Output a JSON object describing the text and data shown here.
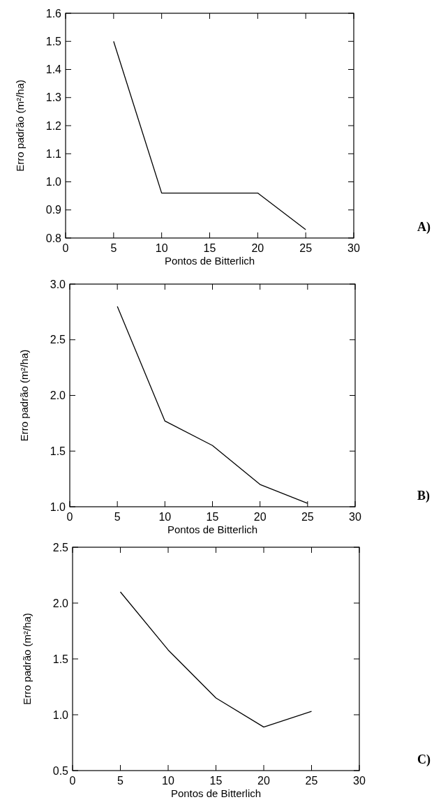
{
  "chart_data": [
    {
      "type": "line",
      "x": [
        5,
        10,
        15,
        20,
        25
      ],
      "series": [
        {
          "color": "#000000",
          "values": [
            1.5,
            0.96,
            0.96,
            0.96,
            0.83
          ]
        }
      ],
      "xlabel": "Pontos de Bitterlich",
      "ylabel": "Erro padrão (m²/ha)",
      "xlim": [
        0,
        30
      ],
      "xticks": [
        0,
        5,
        10,
        15,
        20,
        25,
        30
      ],
      "ylim": [
        0.8,
        1.6
      ],
      "yticks": [
        {
          "value": 0.8,
          "label": "0.8"
        },
        {
          "value": 0.9,
          "label": "0.9"
        },
        {
          "value": 1.0,
          "label": "1.0"
        },
        {
          "value": 1.1,
          "label": "1.1"
        },
        {
          "value": 1.2,
          "label": "1.2"
        },
        {
          "value": 1.3,
          "label": "1.3"
        },
        {
          "value": 1.4,
          "label": "1.4"
        },
        {
          "value": 1.5,
          "label": "1.5"
        },
        {
          "value": 1.6,
          "label": "1.6"
        }
      ],
      "annotations": [
        "A)"
      ],
      "grid": false,
      "marker": "none",
      "line_style": "solid"
    },
    {
      "type": "line",
      "x": [
        5,
        10,
        15,
        20,
        25
      ],
      "series": [
        {
          "color": "#000000",
          "values": [
            2.8,
            1.77,
            1.55,
            1.2,
            1.03
          ]
        }
      ],
      "xlabel": "Pontos de Bitterlich",
      "ylabel": "Erro padrão (m²/ha)",
      "xlim": [
        0,
        30
      ],
      "xticks": [
        0,
        5,
        10,
        15,
        20,
        25,
        30
      ],
      "ylim": [
        1.0,
        3.0
      ],
      "yticks": [
        {
          "value": 1.0,
          "label": "1.0"
        },
        {
          "value": 1.5,
          "label": "1.5"
        },
        {
          "value": 2.0,
          "label": "2.0"
        },
        {
          "value": 2.5,
          "label": "2.5"
        },
        {
          "value": 3.0,
          "label": "3.0"
        }
      ],
      "annotations": [
        "B)"
      ],
      "grid": false,
      "marker": "none",
      "line_style": "solid"
    },
    {
      "type": "line",
      "x": [
        5,
        10,
        15,
        20,
        25
      ],
      "series": [
        {
          "color": "#000000",
          "values": [
            2.1,
            1.58,
            1.15,
            0.89,
            1.03
          ]
        }
      ],
      "xlabel": "Pontos de Bitterlich",
      "ylabel": "Erro padrão (m²/ha)",
      "xlim": [
        0,
        30
      ],
      "xticks": [
        0,
        5,
        10,
        15,
        20,
        25,
        30
      ],
      "ylim": [
        0.5,
        2.5
      ],
      "yticks": [
        {
          "value": 0.5,
          "label": "0.5"
        },
        {
          "value": 1.0,
          "label": "1.0"
        },
        {
          "value": 1.5,
          "label": "1.5"
        },
        {
          "value": 2.0,
          "label": "2.0"
        },
        {
          "value": 2.5,
          "label": "2.5"
        }
      ],
      "annotations": [
        "C)"
      ],
      "grid": false,
      "marker": "none",
      "line_style": "solid"
    }
  ]
}
